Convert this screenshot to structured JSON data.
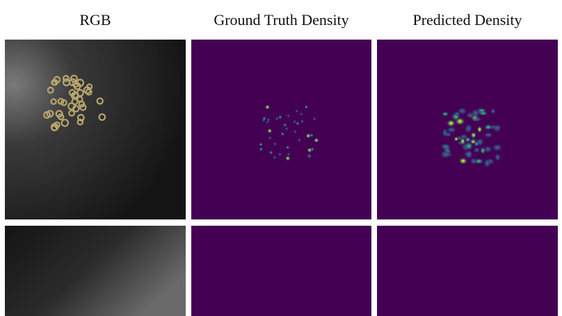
{
  "columns": [
    {
      "title": "RGB"
    },
    {
      "title": "Ground Truth Density"
    },
    {
      "title": "Predicted Density"
    }
  ],
  "rows": [
    {
      "panels": [
        "rgb-scene",
        "ground-truth-density-map",
        "predicted-density-map"
      ]
    },
    {
      "panels": [
        "rgb-scene",
        "ground-truth-density-map",
        "predicted-density-map"
      ]
    }
  ],
  "colors": {
    "density_background": "#440154",
    "density_low": "#3b528b",
    "density_mid": "#21918c",
    "density_high": "#fde725",
    "ring_color": "#b9a66e",
    "rgb_dark": "#1a1a1a"
  }
}
